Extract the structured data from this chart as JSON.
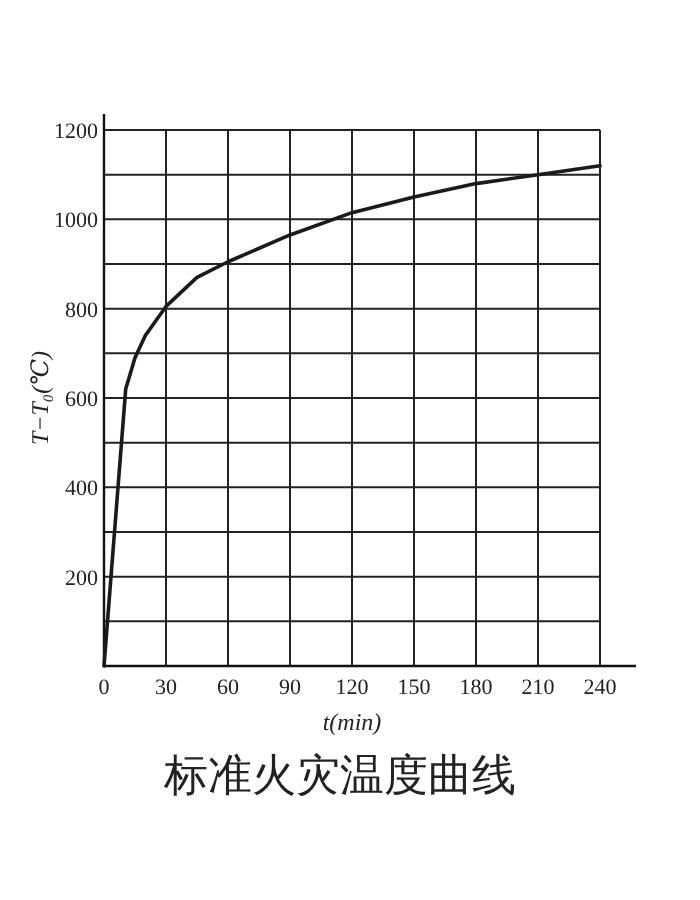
{
  "chart_data": {
    "type": "line",
    "title": "标准火灾温度曲线",
    "xlabel": "t(min)",
    "ylabel": "T−T₀(℃)",
    "x": [
      0,
      10.5,
      15,
      20,
      30,
      45,
      60,
      90,
      120,
      150,
      180,
      210,
      240
    ],
    "series": [
      {
        "color": "#1a1a1a",
        "values": [
          0,
          620,
          690,
          740,
          805,
          870,
          905,
          965,
          1015,
          1050,
          1080,
          1100,
          1120
        ]
      }
    ],
    "xlim": [
      0,
      240
    ],
    "ylim": [
      0,
      1200
    ],
    "xticks": [
      0,
      30,
      60,
      90,
      120,
      150,
      180,
      210,
      240
    ],
    "yticks": [
      {
        "value": 0,
        "label": null
      },
      {
        "value": 100,
        "label": null
      },
      200,
      {
        "value": 300,
        "label": null
      },
      400,
      {
        "value": 500,
        "label": null
      },
      600,
      {
        "value": 700,
        "label": null
      },
      800,
      {
        "value": 900,
        "label": null
      },
      1000,
      {
        "value": 1100,
        "label": null
      },
      1200
    ],
    "grid": true
  }
}
